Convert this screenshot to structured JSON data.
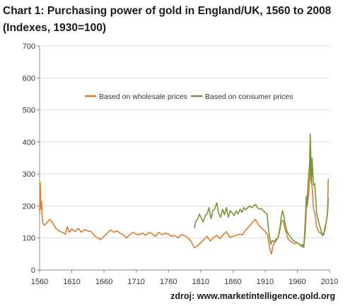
{
  "chart_data": {
    "type": "line",
    "title": "Chart 1: Purchasing power of gold in England/UK, 1560 to 2008 (Indexes, 1930=100)",
    "source": "zdroj: www.marketintelligence.gold.org",
    "xlabel": "",
    "ylabel": "",
    "xlim": [
      1560,
      2010
    ],
    "ylim": [
      0,
      700
    ],
    "x_ticks": [
      1560,
      1610,
      1660,
      1710,
      1760,
      1810,
      1860,
      1910,
      1960,
      2010
    ],
    "y_ticks": [
      0,
      100,
      200,
      300,
      400,
      500,
      600,
      700
    ],
    "grid": "horizontal",
    "legend_position": "upper-center",
    "series": [
      {
        "name": "Based on wholesale prices",
        "color": "#e07b2a",
        "points": [
          [
            1560,
            180
          ],
          [
            1561,
            272
          ],
          [
            1562,
            190
          ],
          [
            1563,
            215
          ],
          [
            1564,
            170
          ],
          [
            1565,
            145
          ],
          [
            1568,
            140
          ],
          [
            1572,
            150
          ],
          [
            1576,
            158
          ],
          [
            1580,
            148
          ],
          [
            1585,
            130
          ],
          [
            1590,
            122
          ],
          [
            1595,
            118
          ],
          [
            1600,
            112
          ],
          [
            1603,
            135
          ],
          [
            1606,
            118
          ],
          [
            1610,
            128
          ],
          [
            1615,
            120
          ],
          [
            1620,
            130
          ],
          [
            1625,
            118
          ],
          [
            1630,
            126
          ],
          [
            1635,
            122
          ],
          [
            1640,
            120
          ],
          [
            1645,
            108
          ],
          [
            1650,
            100
          ],
          [
            1655,
            95
          ],
          [
            1660,
            105
          ],
          [
            1665,
            115
          ],
          [
            1670,
            125
          ],
          [
            1675,
            118
          ],
          [
            1680,
            122
          ],
          [
            1685,
            115
          ],
          [
            1690,
            110
          ],
          [
            1695,
            100
          ],
          [
            1700,
            110
          ],
          [
            1705,
            118
          ],
          [
            1710,
            112
          ],
          [
            1715,
            110
          ],
          [
            1720,
            115
          ],
          [
            1725,
            108
          ],
          [
            1730,
            118
          ],
          [
            1735,
            112
          ],
          [
            1740,
            105
          ],
          [
            1745,
            118
          ],
          [
            1750,
            110
          ],
          [
            1755,
            115
          ],
          [
            1760,
            112
          ],
          [
            1765,
            105
          ],
          [
            1770,
            108
          ],
          [
            1775,
            100
          ],
          [
            1780,
            110
          ],
          [
            1785,
            108
          ],
          [
            1790,
            100
          ],
          [
            1795,
            90
          ],
          [
            1800,
            70
          ],
          [
            1805,
            75
          ],
          [
            1810,
            85
          ],
          [
            1815,
            95
          ],
          [
            1820,
            105
          ],
          [
            1825,
            90
          ],
          [
            1830,
            102
          ],
          [
            1835,
            108
          ],
          [
            1840,
            98
          ],
          [
            1845,
            110
          ],
          [
            1850,
            120
          ],
          [
            1855,
            102
          ],
          [
            1860,
            105
          ],
          [
            1865,
            108
          ],
          [
            1870,
            112
          ],
          [
            1875,
            110
          ],
          [
            1880,
            125
          ],
          [
            1885,
            135
          ],
          [
            1890,
            148
          ],
          [
            1895,
            158
          ],
          [
            1900,
            140
          ],
          [
            1905,
            130
          ],
          [
            1910,
            120
          ],
          [
            1914,
            110
          ],
          [
            1916,
            80
          ],
          [
            1918,
            60
          ],
          [
            1920,
            50
          ],
          [
            1922,
            75
          ],
          [
            1925,
            85
          ],
          [
            1930,
            100
          ],
          [
            1933,
            125
          ],
          [
            1935,
            150
          ],
          [
            1938,
            155
          ],
          [
            1940,
            135
          ],
          [
            1943,
            115
          ],
          [
            1946,
            95
          ],
          [
            1950,
            90
          ],
          [
            1955,
            82
          ],
          [
            1960,
            85
          ],
          [
            1965,
            78
          ],
          [
            1968,
            72
          ],
          [
            1970,
            75
          ],
          [
            1972,
            110
          ],
          [
            1974,
            190
          ],
          [
            1976,
            210
          ],
          [
            1978,
            245
          ],
          [
            1980,
            345
          ],
          [
            1981,
            280
          ],
          [
            1983,
            260
          ],
          [
            1985,
            195
          ],
          [
            1988,
            170
          ],
          [
            1990,
            135
          ],
          [
            1993,
            120
          ],
          [
            1996,
            115
          ],
          [
            1999,
            110
          ],
          [
            2001,
            115
          ],
          [
            2003,
            125
          ],
          [
            2005,
            150
          ],
          [
            2007,
            185
          ],
          [
            2008,
            285
          ]
        ]
      },
      {
        "name": "Based on consumer prices",
        "color": "#6f9a3a",
        "points": [
          [
            1800,
            130
          ],
          [
            1802,
            150
          ],
          [
            1805,
            158
          ],
          [
            1808,
            175
          ],
          [
            1811,
            162
          ],
          [
            1814,
            150
          ],
          [
            1817,
            170
          ],
          [
            1820,
            175
          ],
          [
            1823,
            195
          ],
          [
            1826,
            160
          ],
          [
            1829,
            185
          ],
          [
            1832,
            192
          ],
          [
            1835,
            210
          ],
          [
            1838,
            175
          ],
          [
            1841,
            165
          ],
          [
            1844,
            190
          ],
          [
            1847,
            172
          ],
          [
            1850,
            195
          ],
          [
            1853,
            165
          ],
          [
            1856,
            185
          ],
          [
            1859,
            178
          ],
          [
            1862,
            170
          ],
          [
            1865,
            185
          ],
          [
            1868,
            175
          ],
          [
            1871,
            190
          ],
          [
            1874,
            180
          ],
          [
            1877,
            195
          ],
          [
            1880,
            188
          ],
          [
            1883,
            195
          ],
          [
            1886,
            200
          ],
          [
            1889,
            195
          ],
          [
            1892,
            200
          ],
          [
            1895,
            205
          ],
          [
            1898,
            195
          ],
          [
            1901,
            190
          ],
          [
            1904,
            192
          ],
          [
            1907,
            185
          ],
          [
            1910,
            180
          ],
          [
            1913,
            175
          ],
          [
            1915,
            135
          ],
          [
            1917,
            100
          ],
          [
            1919,
            80
          ],
          [
            1921,
            92
          ],
          [
            1924,
            88
          ],
          [
            1927,
            96
          ],
          [
            1930,
            100
          ],
          [
            1933,
            130
          ],
          [
            1935,
            165
          ],
          [
            1937,
            185
          ],
          [
            1939,
            172
          ],
          [
            1941,
            145
          ],
          [
            1944,
            120
          ],
          [
            1947,
            110
          ],
          [
            1950,
            100
          ],
          [
            1955,
            90
          ],
          [
            1960,
            85
          ],
          [
            1963,
            80
          ],
          [
            1966,
            75
          ],
          [
            1968,
            80
          ],
          [
            1970,
            70
          ],
          [
            1972,
            140
          ],
          [
            1974,
            230
          ],
          [
            1975,
            200
          ],
          [
            1977,
            280
          ],
          [
            1979,
            330
          ],
          [
            1980,
            425
          ],
          [
            1981,
            350
          ],
          [
            1982,
            270
          ],
          [
            1983,
            350
          ],
          [
            1985,
            265
          ],
          [
            1987,
            270
          ],
          [
            1990,
            180
          ],
          [
            1993,
            150
          ],
          [
            1996,
            130
          ],
          [
            1999,
            108
          ],
          [
            2001,
            110
          ],
          [
            2003,
            135
          ],
          [
            2005,
            150
          ],
          [
            2007,
            180
          ],
          [
            2008,
            225
          ]
        ]
      }
    ]
  }
}
